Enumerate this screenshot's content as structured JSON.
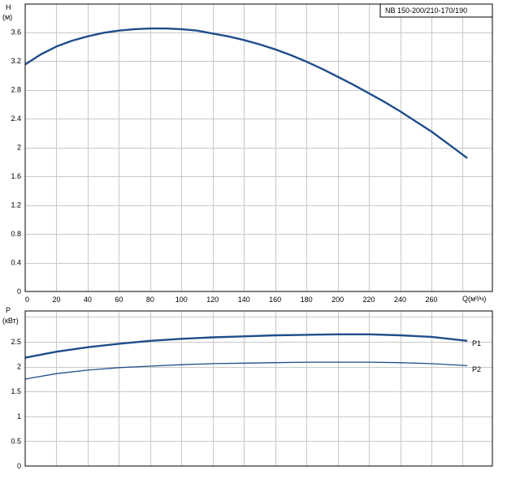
{
  "model_label": "NB 150-200/210-170/190",
  "colors": {
    "curve": "#1f4e8a",
    "grid": "#c8c8c8",
    "frame": "#000000"
  },
  "chart_data": [
    {
      "type": "line",
      "ylabel_top": "H",
      "ylabel_unit": "(м)",
      "xlabel": "Q(м³/ч)",
      "xlim": [
        0,
        300
      ],
      "ylim": [
        0,
        4.0
      ],
      "x_ticks": [
        0,
        20,
        40,
        60,
        80,
        100,
        120,
        140,
        160,
        180,
        200,
        220,
        240,
        260
      ],
      "y_ticks": [
        "0",
        "0.4",
        "0.8",
        "1.2",
        "1.6",
        "2",
        "2.4",
        "2.8",
        "3.2",
        "3.6"
      ],
      "grid": true,
      "series": [
        {
          "x": [
            0,
            10,
            20,
            30,
            40,
            50,
            60,
            70,
            80,
            90,
            100,
            110,
            120,
            130,
            140,
            150,
            160,
            170,
            180,
            190,
            200,
            210,
            220,
            230,
            240,
            250,
            260,
            270,
            283
          ],
          "y": [
            3.15,
            3.29,
            3.4,
            3.48,
            3.54,
            3.59,
            3.62,
            3.64,
            3.65,
            3.65,
            3.64,
            3.62,
            3.58,
            3.54,
            3.49,
            3.43,
            3.36,
            3.28,
            3.19,
            3.09,
            2.98,
            2.87,
            2.75,
            2.63,
            2.5,
            2.36,
            2.22,
            2.06,
            1.85
          ]
        }
      ]
    },
    {
      "type": "line",
      "ylabel_top": "P",
      "ylabel_unit": "(кВт)",
      "xlim": [
        0,
        300
      ],
      "ylim": [
        0,
        3.0
      ],
      "y_ticks": [
        "0",
        "0.5",
        "1",
        "1.5",
        "2",
        "2.5"
      ],
      "grid": true,
      "series": [
        {
          "name": "P1",
          "x": [
            0,
            20,
            40,
            60,
            80,
            100,
            120,
            140,
            160,
            180,
            200,
            220,
            240,
            260,
            283
          ],
          "y": [
            2.18,
            2.3,
            2.39,
            2.46,
            2.52,
            2.56,
            2.59,
            2.61,
            2.63,
            2.64,
            2.65,
            2.65,
            2.63,
            2.6,
            2.52
          ]
        },
        {
          "name": "P2",
          "x": [
            0,
            20,
            40,
            60,
            80,
            100,
            120,
            140,
            160,
            180,
            200,
            220,
            240,
            260,
            283
          ],
          "y": [
            1.75,
            1.86,
            1.93,
            1.98,
            2.01,
            2.04,
            2.06,
            2.07,
            2.08,
            2.09,
            2.09,
            2.09,
            2.08,
            2.06,
            2.02
          ]
        }
      ]
    }
  ]
}
